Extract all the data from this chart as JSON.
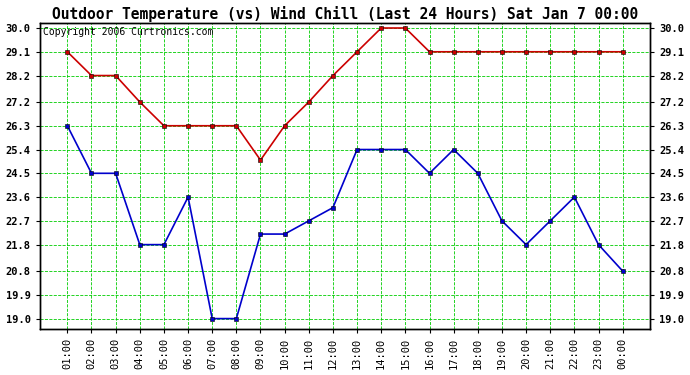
{
  "title": "Outdoor Temperature (vs) Wind Chill (Last 24 Hours) Sat Jan 7 00:00",
  "copyright": "Copyright 2006 Curtronics.com",
  "x_labels": [
    "01:00",
    "02:00",
    "03:00",
    "04:00",
    "05:00",
    "06:00",
    "07:00",
    "08:00",
    "09:00",
    "10:00",
    "11:00",
    "12:00",
    "13:00",
    "14:00",
    "15:00",
    "16:00",
    "17:00",
    "18:00",
    "19:00",
    "20:00",
    "21:00",
    "22:00",
    "23:00",
    "00:00"
  ],
  "temp_data": [
    29.1,
    28.2,
    28.2,
    27.2,
    26.3,
    26.3,
    26.3,
    26.3,
    25.0,
    26.3,
    27.2,
    28.2,
    29.1,
    30.0,
    30.0,
    29.1,
    29.1,
    29.1,
    29.1,
    29.1,
    29.1,
    29.1,
    29.1,
    29.1
  ],
  "wind_chill_data": [
    26.3,
    24.5,
    24.5,
    21.8,
    21.8,
    23.6,
    19.0,
    19.0,
    22.2,
    22.2,
    22.7,
    23.2,
    25.4,
    25.4,
    25.4,
    24.5,
    25.4,
    24.5,
    22.7,
    21.8,
    22.7,
    23.6,
    21.8,
    20.8
  ],
  "temp_color": "#cc0000",
  "wind_chill_color": "#0000cc",
  "plot_bg_color": "#ffffff",
  "grid_color": "#00cc00",
  "yticks": [
    19.0,
    19.9,
    20.8,
    21.8,
    22.7,
    23.6,
    24.5,
    25.4,
    26.3,
    27.2,
    28.2,
    29.1,
    30.0
  ],
  "ylim_min": 18.6,
  "ylim_max": 30.2,
  "fig_bg_color": "#ffffff",
  "title_fontsize": 10.5,
  "tick_fontsize": 7.5,
  "copyright_fontsize": 7.0
}
